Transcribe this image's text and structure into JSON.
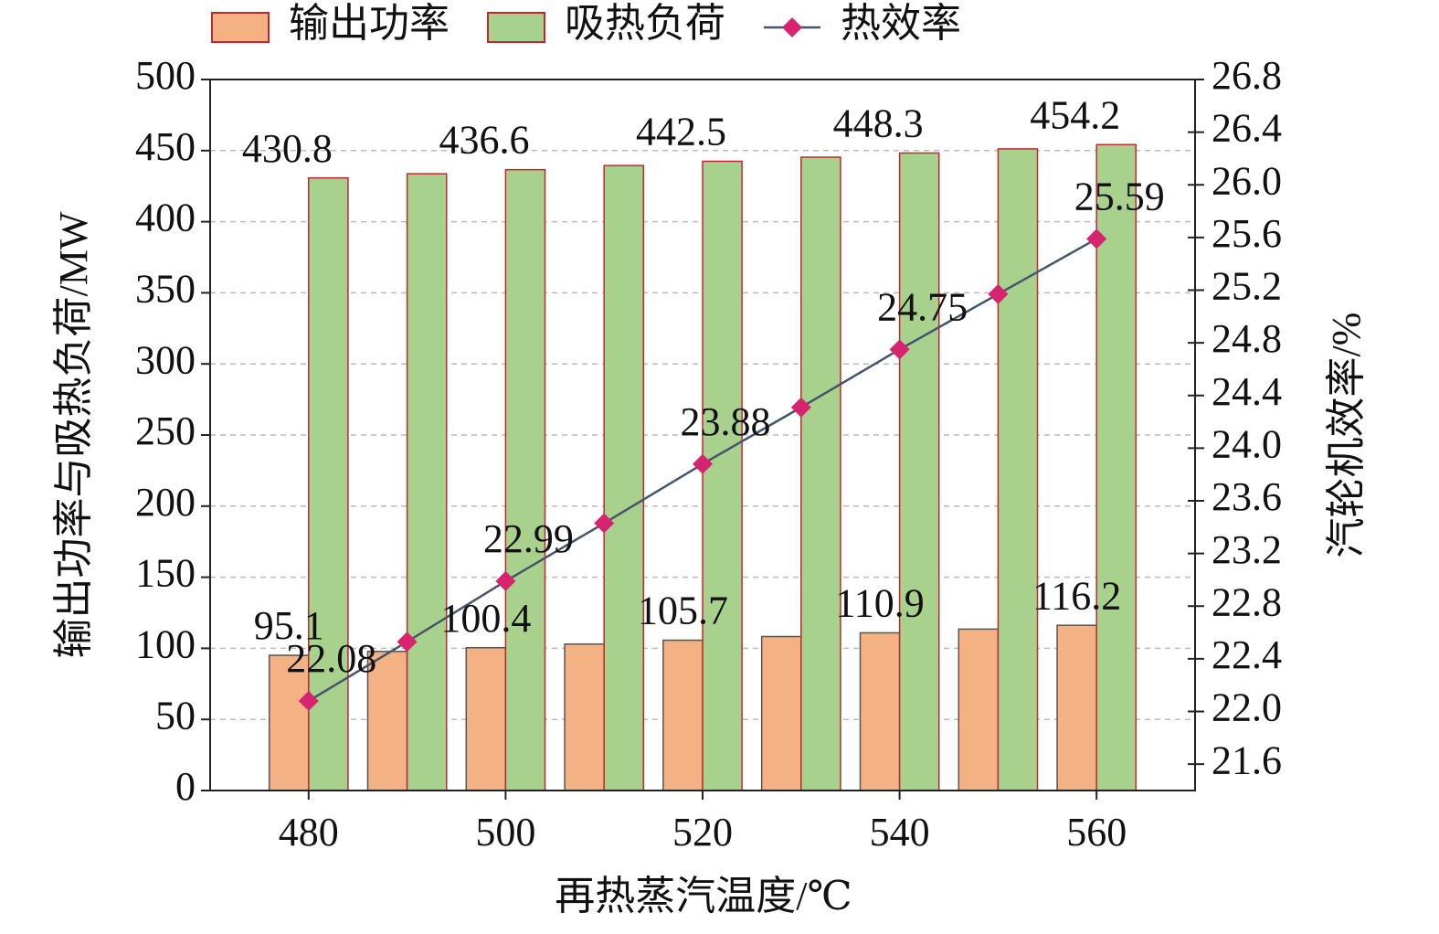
{
  "chart_data": {
    "type": "bar",
    "x_label": "再热蒸汽温度/℃",
    "y_label": "输出功率与吸热负荷/MW",
    "y2_label": "汽轮机效率/%",
    "x": [
      480,
      490,
      500,
      510,
      520,
      530,
      540,
      550,
      560
    ],
    "xlim": [
      470,
      570
    ],
    "xticks": [
      480,
      500,
      520,
      540,
      560
    ],
    "ylim": [
      0,
      500
    ],
    "yticks": [
      0,
      50,
      100,
      150,
      200,
      250,
      300,
      350,
      400,
      450,
      500
    ],
    "y2lim": [
      21.4,
      26.8
    ],
    "y2ticks": [
      21.6,
      {
        "value": 22.0,
        "label": "22.0"
      },
      22.4,
      22.8,
      23.2,
      23.6,
      {
        "value": 24.0,
        "label": "24.0"
      },
      24.4,
      24.8,
      25.2,
      25.6,
      {
        "value": 26.0,
        "label": "26.0"
      },
      26.4,
      {
        "value": 26.8,
        "label": "26.8"
      }
    ],
    "grid": true,
    "legend": "top",
    "series": [
      {
        "name": "输出功率",
        "type": "bar",
        "color": "#f4b183",
        "values": [
          95.1,
          97.8,
          100.4,
          103.0,
          105.7,
          108.3,
          110.9,
          113.5,
          116.2
        ],
        "value_labels": [
          "95.1",
          null,
          "100.4",
          null,
          "105.7",
          null,
          "110.9",
          null,
          "116.2"
        ]
      },
      {
        "name": "吸热负荷",
        "type": "bar",
        "color": "#a9d18e",
        "values": [
          430.8,
          433.7,
          436.6,
          439.5,
          442.5,
          445.4,
          448.3,
          451.2,
          454.2
        ],
        "value_labels": [
          "430.8",
          null,
          "436.6",
          null,
          "442.5",
          null,
          "448.3",
          null,
          "454.2"
        ]
      },
      {
        "name": "热效率",
        "type": "line",
        "axis": "y2",
        "color": "#d6246e",
        "values": [
          22.08,
          22.53,
          22.99,
          23.43,
          23.88,
          24.31,
          24.75,
          25.17,
          25.59
        ],
        "value_labels": [
          "22.08",
          null,
          "22.99",
          null,
          "23.88",
          null,
          "24.75",
          null,
          "25.59"
        ]
      }
    ]
  }
}
